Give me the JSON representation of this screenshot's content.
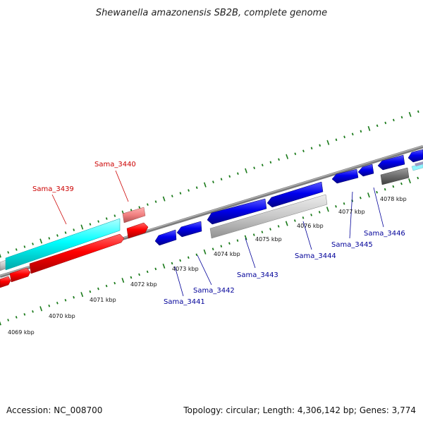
{
  "title": "Shewanella amazonensis SB2B, complete genome",
  "footer": {
    "accession": "Accession: NC_008700",
    "summary": "Topology: circular; Length: 4,306,142 bp; Genes: 3,774"
  },
  "colors": {
    "forward_label": "#cc0000",
    "reverse_label": "#000099",
    "tick": "#1a7a1a",
    "backbone": "#888888",
    "cds_forward": "#ff0000",
    "cds_forward_light": "#f08080",
    "cds_reverse": "#0000ee",
    "rna": "#00ffff",
    "pseudo_light": "#c8c8c8",
    "pseudo_dark": "#707070"
  },
  "kbp_labels": [
    "4069 kbp",
    "4070 kbp",
    "4071 kbp",
    "4072 kbp",
    "4073 kbp",
    "4074 kbp",
    "4075 kbp",
    "4076 kbp",
    "4077 kbp",
    "4078 kbp"
  ],
  "gene_labels": [
    {
      "text": "Sama_3439",
      "strand": "forward"
    },
    {
      "text": "Sama_3440",
      "strand": "forward"
    },
    {
      "text": "Sama_3441",
      "strand": "reverse"
    },
    {
      "text": "Sama_3442",
      "strand": "reverse"
    },
    {
      "text": "Sama_3443",
      "strand": "reverse"
    },
    {
      "text": "Sama_3444",
      "strand": "reverse"
    },
    {
      "text": "Sama_3445",
      "strand": "reverse"
    },
    {
      "text": "Sama_3446",
      "strand": "reverse"
    }
  ]
}
